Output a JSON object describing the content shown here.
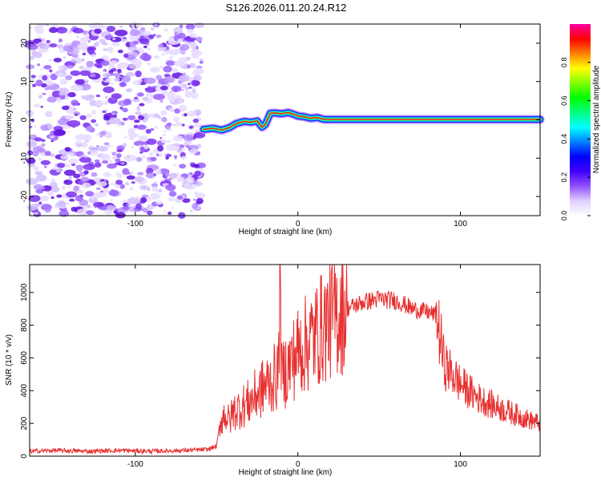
{
  "title": "S126.2026.011.20.24.R12",
  "chart_data": [
    {
      "type": "heatmap",
      "name": "spectrogram",
      "xlabel": "Height of straight line (km)",
      "ylabel": "Frequency (Hz)",
      "xlim": [
        -165,
        149
      ],
      "ylim": [
        -25,
        25
      ],
      "xticks": [
        -100,
        0,
        100
      ],
      "yticks": [
        20,
        10,
        0,
        -10,
        -20
      ],
      "noise_region_x": [
        -165,
        -59
      ],
      "signal_track": {
        "x": [
          -58,
          -52,
          -47,
          -42,
          -38,
          -33,
          -29,
          -25,
          -22,
          -20,
          -17,
          -14,
          -10,
          -6,
          -3,
          0,
          4,
          8,
          12,
          16,
          149
        ],
        "freq": [
          -2.5,
          -2.2,
          -2.7,
          -2.0,
          -1.0,
          -0.4,
          -0.6,
          -0.3,
          -1.9,
          -1.2,
          1.7,
          1.8,
          1.6,
          1.9,
          1.5,
          1.0,
          0.8,
          0.4,
          0.6,
          0.1,
          0.1
        ]
      },
      "colorbar": {
        "label": "Normalized spectral amplitude",
        "range": [
          0.0,
          1.0
        ],
        "ticks": [
          0.0,
          0.2,
          0.4,
          0.6,
          0.8
        ],
        "tick_labels": [
          "0.0",
          "0.2",
          "0.4",
          "0.6",
          "0.8"
        ],
        "colors": [
          "#ffffff",
          "#e0d0ff",
          "#9050ff",
          "#4000ff",
          "#0000ff",
          "#0080ff",
          "#00ffff",
          "#00ff80",
          "#00ff00",
          "#80ff00",
          "#ffff00",
          "#ff8000",
          "#ff0000",
          "#ff00a0"
        ]
      }
    },
    {
      "type": "line",
      "name": "snr",
      "xlabel": "Height of straight line (km)",
      "ylabel": "SNR (10 * v/v)",
      "xlim": [
        -165,
        149
      ],
      "ylim": [
        0,
        1170
      ],
      "xticks": [
        -100,
        0,
        100
      ],
      "yticks": [
        0,
        200,
        400,
        600,
        800,
        1000
      ],
      "color": "#e83030",
      "x": [
        -165,
        -150,
        -130,
        -110,
        -90,
        -70,
        -56,
        -50,
        -48,
        -45,
        -42,
        -40,
        -35,
        -30,
        -25,
        -20,
        -15,
        -12,
        -11,
        -10,
        -8,
        -5,
        0,
        10,
        20,
        30,
        40,
        50,
        60,
        65,
        70,
        80,
        85,
        88,
        90,
        100,
        110,
        120,
        130,
        140,
        149
      ],
      "values": [
        30,
        35,
        30,
        35,
        30,
        35,
        40,
        60,
        200,
        260,
        210,
        270,
        300,
        330,
        380,
        430,
        470,
        500,
        1170,
        480,
        520,
        560,
        640,
        730,
        840,
        900,
        940,
        960,
        950,
        930,
        900,
        880,
        860,
        700,
        560,
        440,
        360,
        310,
        270,
        230,
        200
      ]
    }
  ]
}
